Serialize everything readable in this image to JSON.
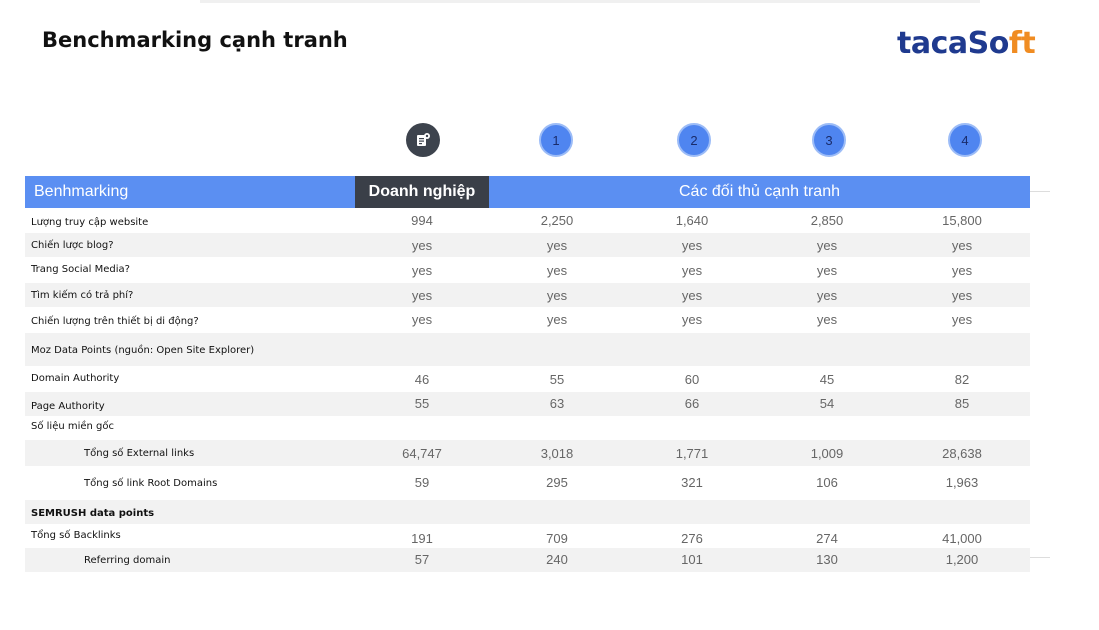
{
  "title": "Benchmarking cạnh tranh",
  "logo": {
    "part1": "taca",
    "part2": "So",
    "part3": "ft"
  },
  "columns": {
    "own_icon": "document-money-icon",
    "badges": [
      "1",
      "2",
      "3",
      "4"
    ]
  },
  "header": {
    "label": "Benhmarking",
    "own": "Doanh nghiệp",
    "competitors": "Các đối thủ cạnh tranh"
  },
  "rows": [
    {
      "label": "Lượng truy cập website",
      "values": [
        "994",
        "2,250",
        "1,640",
        "2,850",
        "15,800"
      ]
    },
    {
      "label": "Chiến lược blog?",
      "values": [
        "yes",
        "yes",
        "yes",
        "yes",
        "yes"
      ]
    },
    {
      "label": "Trang Social Media?",
      "values": [
        "yes",
        "yes",
        "yes",
        "yes",
        "yes"
      ]
    },
    {
      "label": "Tìm kiếm có trả phí?",
      "values": [
        "yes",
        "yes",
        "yes",
        "yes",
        "yes"
      ]
    },
    {
      "label": "Chiến lượng trên thiết bị di động?",
      "values": [
        "yes",
        "yes",
        "yes",
        "yes",
        "yes"
      ]
    },
    {
      "label": "Moz Data Points (nguồn: Open Site Explorer)",
      "values": []
    },
    {
      "label": "Domain Authority",
      "values": [
        "46",
        "55",
        "60",
        "45",
        "82"
      ]
    },
    {
      "label": "Page Authority",
      "values": [
        "55",
        "63",
        "66",
        "54",
        "85"
      ]
    },
    {
      "label": "Số liệu miền gốc",
      "values": []
    },
    {
      "label": "Tổng số External links",
      "values": [
        "64,747",
        "3,018",
        "1,771",
        "1,009",
        "28,638"
      ]
    },
    {
      "label": "Tổng số link Root Domains",
      "values": [
        "59",
        "295",
        "321",
        "106",
        "1,963"
      ]
    },
    {
      "label": "SEMRUSH data points",
      "values": []
    },
    {
      "label": "Tổng số Backlinks",
      "values": [
        "191",
        "709",
        "276",
        "274",
        "41,000"
      ]
    },
    {
      "label": "Referring domain",
      "values": [
        "57",
        "240",
        "101",
        "130",
        "1,200"
      ]
    }
  ],
  "colors": {
    "header_blue": "#5b8ff2",
    "own_dark": "#3a3f48",
    "badge_blue": "#4f85f0",
    "logo_blue": "#1f3a8f",
    "logo_orange": "#f08c22"
  }
}
